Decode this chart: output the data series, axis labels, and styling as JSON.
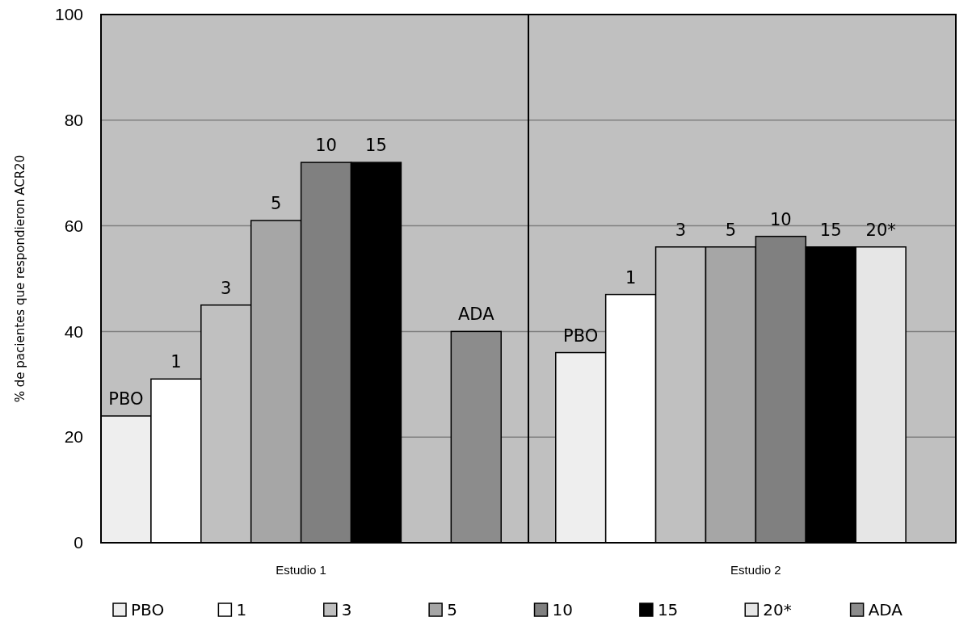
{
  "chart_data": {
    "type": "bar",
    "ylabel": "% de pacientes que respondieron ACR20",
    "categories": [
      "Estudio 1",
      "Estudio 2"
    ],
    "series": [
      {
        "name": "PBO",
        "color": "#eeeeee",
        "values": [
          24,
          36
        ]
      },
      {
        "name": "1",
        "color": "#ffffff",
        "values": [
          31,
          47
        ]
      },
      {
        "name": "3",
        "color": "#c0c0c0",
        "values": [
          45,
          56
        ]
      },
      {
        "name": "5",
        "color": "#a6a6a6",
        "values": [
          61,
          56
        ]
      },
      {
        "name": "10",
        "color": "#808080",
        "values": [
          72,
          58
        ]
      },
      {
        "name": "15",
        "color": "#000000",
        "values": [
          72,
          56
        ]
      },
      {
        "name": "20*",
        "color": "#e6e6e6",
        "values": [
          null,
          56
        ]
      },
      {
        "name": "ADA",
        "color": "#8c8c8c",
        "values": [
          40,
          null
        ]
      }
    ],
    "ylim": [
      0,
      100
    ],
    "yticks": [
      0,
      20,
      40,
      60,
      80,
      100
    ],
    "grid": "y",
    "legend": "bottom"
  }
}
